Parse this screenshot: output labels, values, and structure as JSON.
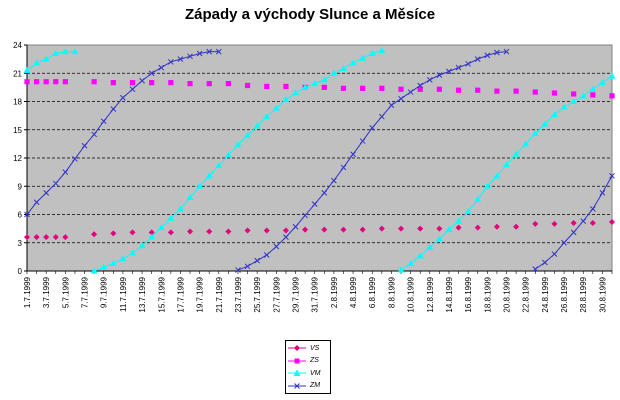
{
  "chart_data": {
    "type": "line",
    "title": "Západy a východy Slunce a Měsíce",
    "xlabel": "",
    "ylabel": "",
    "ylim": [
      0,
      24
    ],
    "yticks": [
      0,
      3,
      6,
      9,
      12,
      15,
      18,
      21,
      24
    ],
    "grid": true,
    "legend_position": "bottom-center",
    "x": [
      "1.7.1999",
      "2.7.1999",
      "3.7.1999",
      "4.7.1999",
      "5.7.1999",
      "6.7.1999",
      "7.7.1999",
      "8.7.1999",
      "9.7.1999",
      "10.7.1999",
      "11.7.1999",
      "12.7.1999",
      "13.7.1999",
      "14.7.1999",
      "15.7.1999",
      "16.7.1999",
      "17.7.1999",
      "18.7.1999",
      "19.7.1999",
      "20.7.1999",
      "21.7.1999",
      "22.7.1999",
      "23.7.1999",
      "24.7.1999",
      "25.7.1999",
      "26.7.1999",
      "27.7.1999",
      "28.7.1999",
      "29.7.1999",
      "30.7.1999",
      "31.7.1999",
      "1.8.1999",
      "2.8.1999",
      "3.8.1999",
      "4.8.1999",
      "5.8.1999",
      "6.8.1999",
      "7.8.1999",
      "8.8.1999",
      "9.8.1999",
      "10.8.1999",
      "11.8.1999",
      "12.8.1999",
      "13.8.1999",
      "14.8.1999",
      "15.8.1999",
      "16.8.1999",
      "17.8.1999",
      "18.8.1999",
      "19.8.1999",
      "20.8.1999",
      "21.8.1999",
      "22.8.1999",
      "23.8.1999",
      "24.8.1999",
      "25.8.1999",
      "26.8.1999",
      "27.8.1999",
      "28.8.1999",
      "29.8.1999",
      "30.8.1999",
      "31.8.1999"
    ],
    "xtick_labels": [
      "1.7.1999",
      "3.7.1999",
      "5.7.1999",
      "7.7.1999",
      "9.7.1999",
      "11.7.1999",
      "13.7.1999",
      "15.7.1999",
      "17.7.1999",
      "19.7.1999",
      "21.7.1999",
      "23.7.1999",
      "25.7.1999",
      "27.7.1999",
      "29.7.1999",
      "31.7.1999",
      "2.8.1999",
      "4.8.1999",
      "6.8.1999",
      "8.8.1999",
      "10.8.1999",
      "12.8.1999",
      "14.8.1999",
      "16.8.1999",
      "18.8.1999",
      "20.8.1999",
      "22.8.1999",
      "24.8.1999",
      "26.8.1999",
      "28.8.1999",
      "30.8.1999"
    ],
    "series": [
      {
        "name": "VS",
        "color": "#e4007c",
        "marker": "diamond",
        "line": false,
        "values": [
          3.6,
          3.6,
          3.6,
          3.6,
          3.6,
          null,
          null,
          3.9,
          null,
          4.0,
          null,
          4.1,
          null,
          4.1,
          null,
          4.1,
          null,
          4.2,
          null,
          4.2,
          null,
          4.2,
          null,
          4.3,
          null,
          4.3,
          null,
          4.3,
          null,
          4.4,
          null,
          4.4,
          null,
          4.4,
          null,
          4.4,
          null,
          4.5,
          null,
          4.5,
          null,
          4.5,
          null,
          4.5,
          null,
          4.6,
          null,
          4.6,
          null,
          4.7,
          null,
          4.7,
          null,
          5.0,
          null,
          5.0,
          null,
          5.1,
          null,
          5.1,
          null,
          5.2
        ]
      },
      {
        "name": "ZS",
        "color": "#ff00ff",
        "marker": "square",
        "line": false,
        "values": [
          20.1,
          20.1,
          20.1,
          20.1,
          20.1,
          null,
          null,
          20.1,
          null,
          20.0,
          null,
          20.0,
          null,
          20.0,
          null,
          20.0,
          null,
          19.9,
          null,
          19.9,
          null,
          19.9,
          null,
          19.7,
          null,
          19.6,
          null,
          19.6,
          null,
          19.5,
          null,
          19.5,
          null,
          19.4,
          null,
          19.4,
          null,
          19.4,
          null,
          19.3,
          null,
          19.3,
          null,
          19.3,
          null,
          19.2,
          null,
          19.2,
          null,
          19.1,
          null,
          19.1,
          null,
          19.0,
          null,
          18.9,
          null,
          18.8,
          null,
          18.7,
          null,
          18.6
        ]
      },
      {
        "name": "VM",
        "color": "#00ffff",
        "marker": "triangle",
        "line": true,
        "values": [
          21.3,
          22.1,
          22.5,
          23.1,
          23.3,
          23.3,
          null,
          0.0,
          0.4,
          0.8,
          1.3,
          1.9,
          2.7,
          3.6,
          4.6,
          5.6,
          6.6,
          7.8,
          9.0,
          10.1,
          11.2,
          12.3,
          13.4,
          14.4,
          15.4,
          16.4,
          17.3,
          18.2,
          18.9,
          19.5,
          19.9,
          20.3,
          21.0,
          21.5,
          22.1,
          22.6,
          23.1,
          23.4,
          null,
          0.1,
          0.8,
          1.6,
          2.5,
          3.4,
          4.4,
          5.3,
          6.3,
          7.6,
          9.0,
          10.1,
          11.3,
          12.4,
          13.5,
          14.6,
          15.6,
          16.6,
          17.4,
          18.0,
          18.6,
          19.3,
          20.0,
          20.7
        ]
      },
      {
        "name": "ZM",
        "color": "#3232c8",
        "marker": "x",
        "line": true,
        "values": [
          6.0,
          7.3,
          8.3,
          9.3,
          10.5,
          11.9,
          13.3,
          14.5,
          15.9,
          17.2,
          18.4,
          19.3,
          20.2,
          21.0,
          21.6,
          22.2,
          22.5,
          22.8,
          23.1,
          23.3,
          23.3,
          null,
          0.1,
          0.5,
          1.1,
          1.7,
          2.6,
          3.6,
          4.7,
          5.9,
          7.1,
          8.3,
          9.6,
          11.0,
          12.4,
          13.8,
          15.2,
          16.4,
          17.6,
          18.3,
          19.0,
          19.7,
          20.3,
          20.8,
          21.2,
          21.6,
          22.0,
          22.5,
          22.9,
          23.2,
          23.3,
          null,
          null,
          0.2,
          0.9,
          1.8,
          3.0,
          4.1,
          5.3,
          6.6,
          8.3,
          10.1
        ]
      }
    ]
  }
}
